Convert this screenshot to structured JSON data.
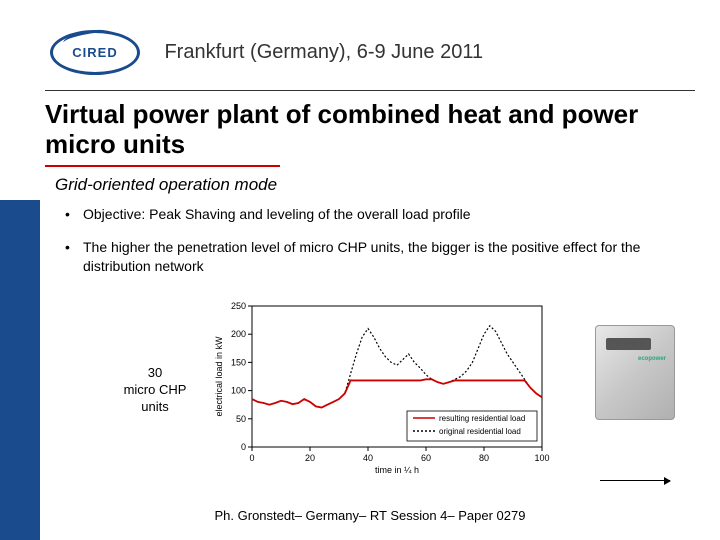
{
  "logo": {
    "text": "CIRED"
  },
  "header": {
    "location_date": "Frankfurt (Germany), 6-9 June 2011"
  },
  "title": "Virtual power plant of combined heat and power micro units",
  "subtitle": "Grid-oriented operation mode",
  "bullets": [
    "Objective: Peak Shaving and leveling of the overall load profile",
    "The higher the penetration level of micro CHP units, the bigger is the positive effect for the distribution network"
  ],
  "figure": {
    "label": "30\nmicro CHP\nunits",
    "device_brand": "ecopower",
    "chart": {
      "type": "line",
      "xlabel": "time in ¼ h",
      "ylabel": "electrical load in kW",
      "xlim": [
        0,
        100
      ],
      "ylim": [
        0,
        250
      ],
      "xticks": [
        0,
        20,
        40,
        60,
        80,
        100
      ],
      "yticks": [
        0,
        50,
        100,
        150,
        200,
        250
      ],
      "background_color": "#ffffff",
      "axis_color": "#000000",
      "tick_fontsize": 9,
      "label_fontsize": 9,
      "legend": {
        "position": "lower-right",
        "box_color": "#000000",
        "items": [
          {
            "label": "resulting residential load",
            "color": "#cc0000",
            "style": "solid"
          },
          {
            "label": "original residential load",
            "color": "#000000",
            "style": "dotted"
          }
        ]
      },
      "series": [
        {
          "name": "original residential load",
          "color": "#000000",
          "style": "dotted",
          "line_width": 1.2,
          "x": [
            0,
            2,
            4,
            6,
            8,
            10,
            12,
            14,
            16,
            18,
            20,
            22,
            24,
            26,
            28,
            30,
            32,
            34,
            36,
            38,
            40,
            42,
            44,
            46,
            48,
            50,
            52,
            54,
            56,
            58,
            60,
            62,
            64,
            66,
            68,
            70,
            72,
            74,
            76,
            78,
            80,
            82,
            84,
            86,
            88,
            90,
            92,
            94,
            96,
            98,
            100
          ],
          "y": [
            85,
            80,
            78,
            75,
            78,
            82,
            80,
            76,
            78,
            85,
            80,
            72,
            70,
            75,
            80,
            85,
            95,
            130,
            165,
            195,
            210,
            195,
            175,
            160,
            150,
            145,
            155,
            165,
            150,
            140,
            128,
            120,
            115,
            112,
            115,
            120,
            125,
            135,
            150,
            175,
            200,
            215,
            205,
            185,
            165,
            150,
            135,
            120,
            105,
            95,
            88
          ]
        },
        {
          "name": "resulting residential load",
          "color": "#cc0000",
          "style": "solid",
          "line_width": 1.8,
          "x": [
            0,
            2,
            4,
            6,
            8,
            10,
            12,
            14,
            16,
            18,
            20,
            22,
            24,
            26,
            28,
            30,
            32,
            34,
            36,
            38,
            40,
            42,
            44,
            46,
            48,
            50,
            52,
            54,
            56,
            58,
            60,
            62,
            64,
            66,
            68,
            70,
            72,
            74,
            76,
            78,
            80,
            82,
            84,
            86,
            88,
            90,
            92,
            94,
            96,
            98,
            100
          ],
          "y": [
            85,
            80,
            78,
            75,
            78,
            82,
            80,
            76,
            78,
            85,
            80,
            72,
            70,
            75,
            80,
            85,
            95,
            118,
            118,
            118,
            118,
            118,
            118,
            118,
            118,
            118,
            118,
            118,
            118,
            118,
            120,
            120,
            115,
            112,
            115,
            118,
            118,
            118,
            118,
            118,
            118,
            118,
            118,
            118,
            118,
            118,
            118,
            118,
            105,
            95,
            88
          ]
        }
      ]
    }
  },
  "footer": "Ph. Gronstedt– Germany– RT Session 4– Paper 0279"
}
